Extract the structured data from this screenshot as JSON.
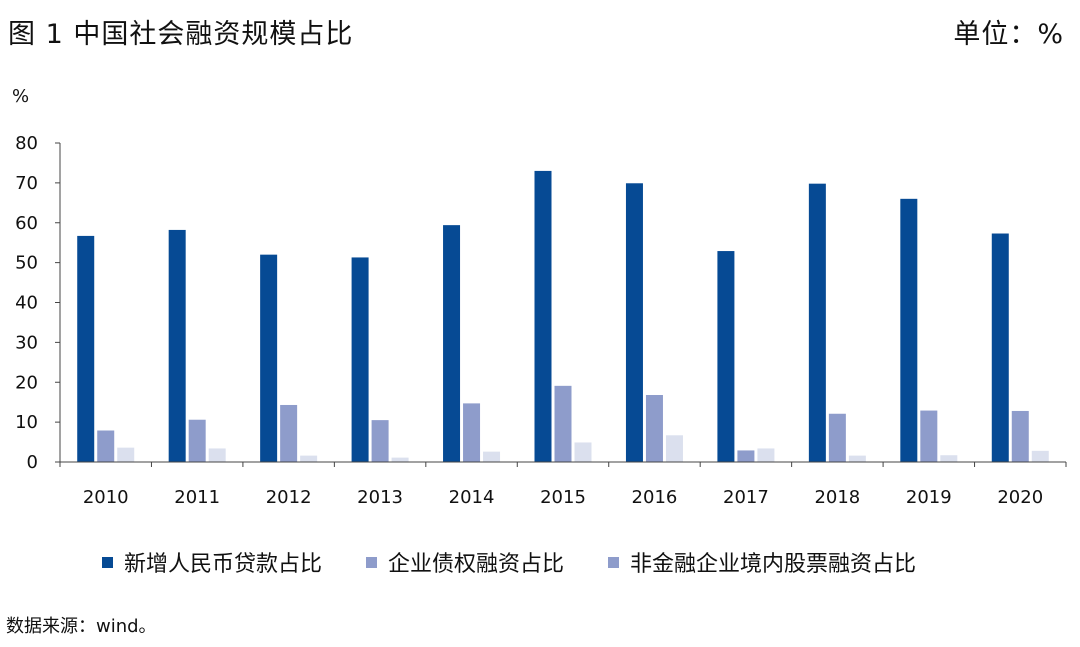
{
  "header": {
    "title": "图 1  中国社会融资规模占比",
    "unit": "单位：%"
  },
  "footer": {
    "source": "数据来源：wind。"
  },
  "chart_data": {
    "type": "bar",
    "title": "图 1  中国社会融资规模占比",
    "ylabel": "%",
    "xlabel": "",
    "ylim": [
      0,
      80
    ],
    "yticks": [
      "0",
      "10",
      "20",
      "30",
      "40",
      "50",
      "60",
      "70",
      "80"
    ],
    "categories": [
      "2010",
      "2011",
      "2012",
      "2013",
      "2014",
      "2015",
      "2016",
      "2017",
      "2018",
      "2019",
      "2020"
    ],
    "series": [
      {
        "name": "新增人民币贷款占比",
        "color": "#064a94",
        "values": [
          56.7,
          58.2,
          52.0,
          51.3,
          59.4,
          73.0,
          69.9,
          52.9,
          69.8,
          66.0,
          57.3
        ]
      },
      {
        "name": "企业债权融资占比",
        "color": "#8e9ccb",
        "values": [
          7.9,
          10.6,
          14.3,
          10.5,
          14.7,
          19.1,
          16.8,
          2.9,
          12.1,
          12.9,
          12.8
        ]
      },
      {
        "name": "非金融企业境内股票融资占比",
        "color": "#dbe0ee",
        "values": [
          3.6,
          3.4,
          1.6,
          1.1,
          2.6,
          4.9,
          6.7,
          3.4,
          1.6,
          1.7,
          2.8
        ]
      }
    ],
    "legend_swatch_colors": [
      "#064a94",
      "#8e9ccb",
      "#8e9ccb"
    ],
    "legend_position": "bottom",
    "grid": false
  }
}
